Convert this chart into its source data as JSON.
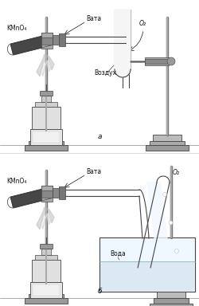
{
  "lc": "#444444",
  "dc": "#111111",
  "gc": "#888888",
  "label_a": "а",
  "label_b": "б",
  "label_kmno4": "KMnO₄",
  "label_vata": "Вата",
  "label_o2": "O₂",
  "label_vozduh": "Воздух",
  "label_voda": "Вода",
  "fs": 5.5
}
